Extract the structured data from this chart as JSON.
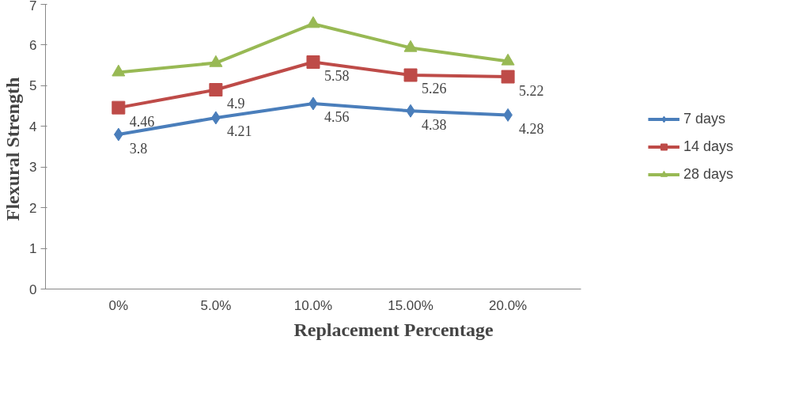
{
  "chart_data": {
    "type": "line",
    "xlabel": "Replacement Percentage",
    "ylabel": "Flexural  Strength",
    "categories": [
      "0%",
      "5.0%",
      "10.0%",
      "15.00%",
      "20.0%"
    ],
    "series": [
      {
        "name": "7 days",
        "color": "#4a7ebb",
        "marker": "diamond",
        "values": [
          3.8,
          4.21,
          4.56,
          4.38,
          4.28
        ],
        "value_labels": [
          "3.8",
          "4.21",
          "4.56",
          "4.38",
          "4.28"
        ]
      },
      {
        "name": "14 days",
        "color": "#be4b48",
        "marker": "square",
        "values": [
          4.46,
          4.9,
          5.58,
          5.26,
          5.22
        ],
        "value_labels": [
          "4.46",
          "4.9",
          "5.58",
          "5.26",
          "5.22"
        ]
      },
      {
        "name": "28 days",
        "color": "#98b954",
        "marker": "triangle",
        "values": [
          5.33,
          5.56,
          6.52,
          5.93,
          5.6
        ]
      }
    ],
    "ylim": [
      0,
      7
    ],
    "yticks": [
      0,
      1,
      2,
      3,
      4,
      5,
      6,
      7
    ],
    "grid": false,
    "legend": "right"
  }
}
